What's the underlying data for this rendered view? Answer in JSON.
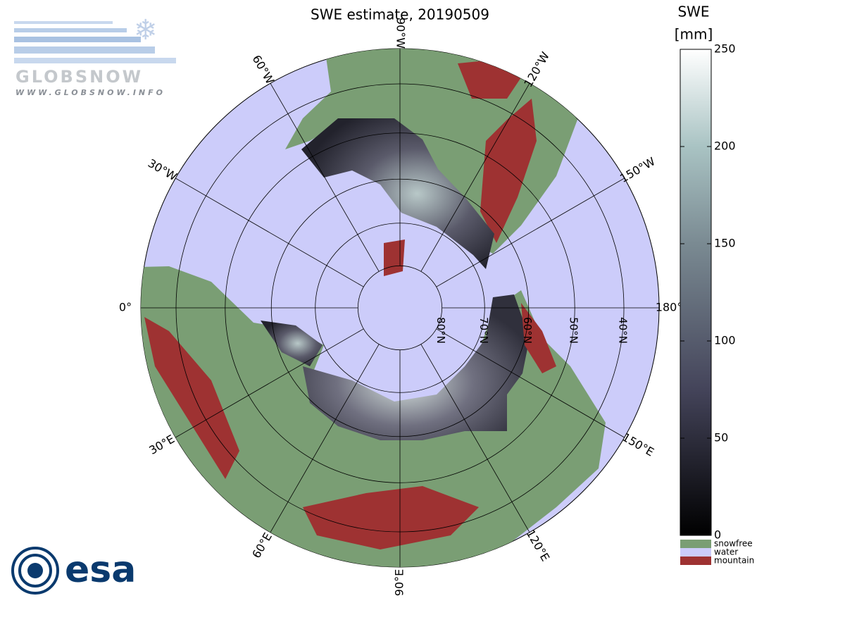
{
  "title": "SWE estimate, 20190509",
  "logos": {
    "globsnow": "GLOBSNOW",
    "globsnow_url": "WWW.GLOBSNOW.INFO",
    "esa": "esa"
  },
  "map": {
    "latitudes": [
      {
        "value": 80,
        "label": "80°N"
      },
      {
        "value": 70,
        "label": "70°N"
      },
      {
        "value": 60,
        "label": "60°N"
      },
      {
        "value": 50,
        "label": "50°N"
      },
      {
        "value": 40,
        "label": "40°N"
      }
    ],
    "longitudes": [
      {
        "value": -90,
        "label": "90°W"
      },
      {
        "value": -120,
        "label": "120°W"
      },
      {
        "value": -150,
        "label": "150°W"
      },
      {
        "value": 180,
        "label": "180°W"
      },
      {
        "value": 150,
        "label": "150°E"
      },
      {
        "value": 120,
        "label": "120°E"
      },
      {
        "value": 90,
        "label": "90°E"
      },
      {
        "value": 60,
        "label": "60°E"
      },
      {
        "value": 30,
        "label": "30°E"
      },
      {
        "value": 0,
        "label": "0°"
      },
      {
        "value": -30,
        "label": "30°W"
      },
      {
        "value": -60,
        "label": "60°W"
      }
    ]
  },
  "colorbar": {
    "title": "SWE",
    "unit": "[mm]",
    "lim": [
      0,
      250
    ],
    "ticks": [
      0,
      50,
      100,
      150,
      200,
      250
    ]
  },
  "legend": [
    {
      "name": "snowfree",
      "color": "#7a9e74"
    },
    {
      "name": "water",
      "color": "#ccccfa"
    },
    {
      "name": "mountain",
      "color": "#9e3232"
    }
  ]
}
